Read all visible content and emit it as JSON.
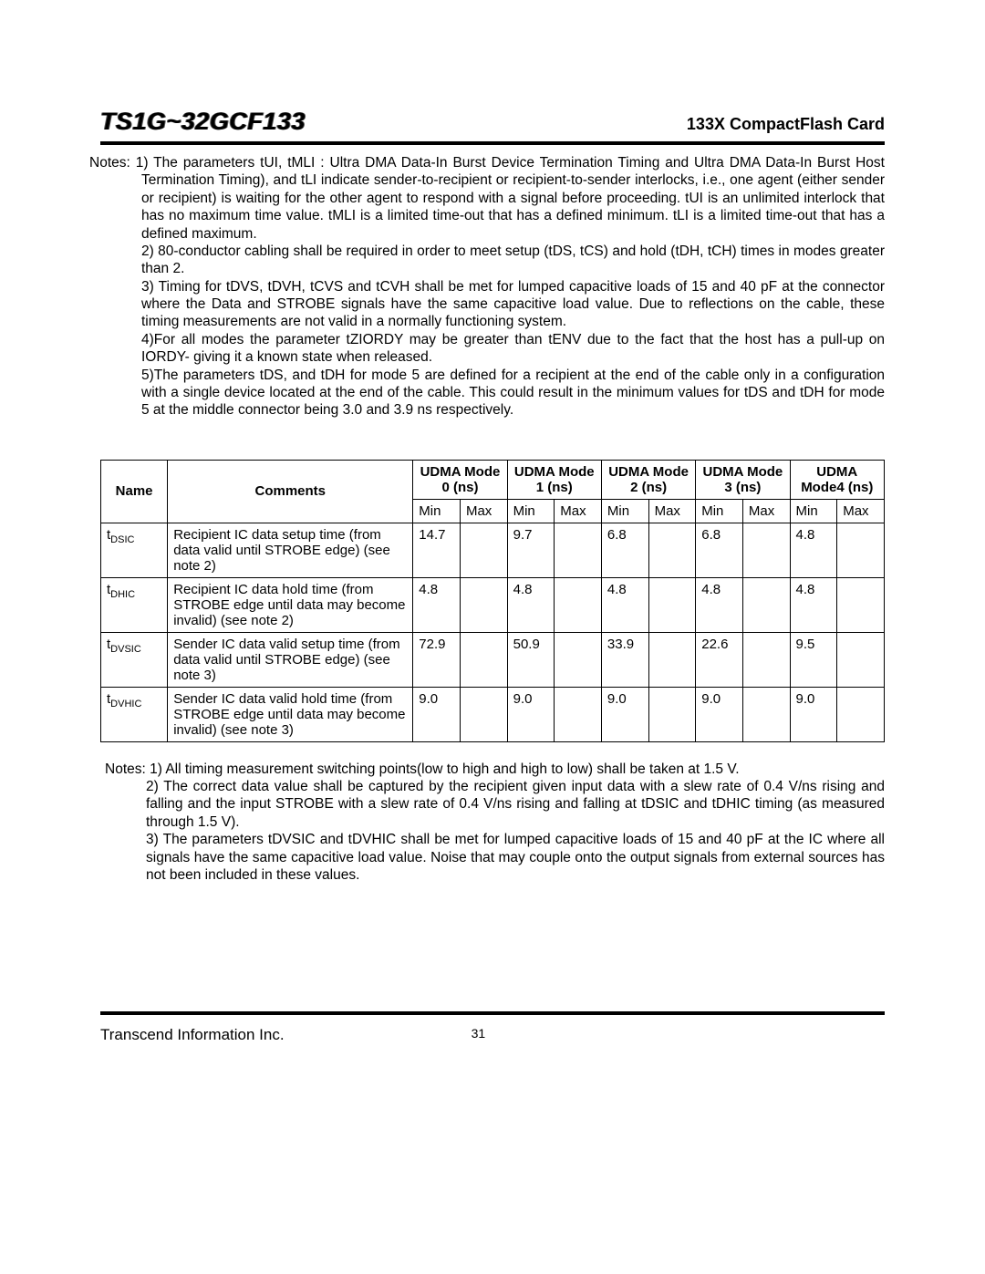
{
  "header": {
    "product": "TS1G~32GCF133",
    "subtitle": "133X CompactFlash Card"
  },
  "notes1": {
    "prefix": "Notes: 1) ",
    "l1": "The parameters tUI, tMLI : Ultra DMA Data-In Burst Device Termination Timing and Ultra DMA Data-In Burst Host Termination Timing), and tLI indicate sender-to-recipient or recipient-to-sender interlocks, i.e., one agent (either sender or recipient) is waiting for the other agent to respond with a signal before proceeding. tUI is an unlimited interlock that has no maximum time value. tMLI is a limited time-out that has a defined minimum. tLI is a limited time-out that has a defined maximum.",
    "l2": "2) 80-conductor cabling shall be required in order to meet setup (tDS, tCS) and hold (tDH, tCH) times in modes greater than 2.",
    "l3": "3) Timing for tDVS, tDVH, tCVS and tCVH shall be met for lumped capacitive loads of 15 and 40 pF at the connector where the Data and STROBE signals have the same capacitive load value. Due to reflections on the cable, these timing measurements are not valid in a normally functioning system.",
    "l4": "4)For all modes the parameter tZIORDY may be greater than tENV due to the fact that the host has a pull-up on IORDY- giving it a known state when released.",
    "l5": "5)The parameters tDS, and tDH for mode 5 are defined for a recipient at the end of the cable only in a configuration with a single device located at the end of the cable. This could result in the minimum values for tDS and tDH for mode 5 at the middle connector being 3.0 and 3.9 ns respectively."
  },
  "table": {
    "headers": {
      "name": "Name",
      "comments": "Comments",
      "modes": [
        "UDMA Mode 0 (ns)",
        "UDMA Mode 1 (ns)",
        "UDMA Mode 2 (ns)",
        "UDMA Mode 3 (ns)",
        "UDMA Mode4 (ns)"
      ],
      "min": "Min",
      "max": "Max"
    },
    "rows": [
      {
        "name_pre": "t",
        "name_sub": "DSIC",
        "comments": "Recipient IC data setup time (from data valid until STROBE edge) (see note 2)",
        "m0min": "14.7",
        "m0max": "",
        "m1min": "9.7",
        "m1max": "",
        "m2min": "6.8",
        "m2max": "",
        "m3min": "6.8",
        "m3max": "",
        "m4min": "4.8",
        "m4max": ""
      },
      {
        "name_pre": "t",
        "name_sub": "DHIC",
        "comments": "Recipient IC data hold time (from STROBE edge until data may become invalid) (see note 2)",
        "m0min": "4.8",
        "m0max": "",
        "m1min": "4.8",
        "m1max": "",
        "m2min": "4.8",
        "m2max": "",
        "m3min": "4.8",
        "m3max": "",
        "m4min": "4.8",
        "m4max": ""
      },
      {
        "name_pre": "t",
        "name_sub": "DVSIC",
        "comments": "Sender IC data valid setup time (from data valid until STROBE edge) (see note 3)",
        "m0min": "72.9",
        "m0max": "",
        "m1min": "50.9",
        "m1max": "",
        "m2min": "33.9",
        "m2max": "",
        "m3min": "22.6",
        "m3max": "",
        "m4min": "9.5",
        "m4max": ""
      },
      {
        "name_pre": "t",
        "name_sub": "DVHIC",
        "comments": "Sender IC data valid hold time (from STROBE edge until data may become invalid) (see note 3)",
        "m0min": "9.0",
        "m0max": "",
        "m1min": "9.0",
        "m1max": "",
        "m2min": "9.0",
        "m2max": "",
        "m3min": "9.0",
        "m3max": "",
        "m4min": "9.0",
        "m4max": ""
      }
    ]
  },
  "notes2": {
    "l1": "Notes: 1) All timing measurement switching points(low to high and high to low) shall be taken at 1.5 V.",
    "l2": "2) The correct data value shall be captured by the recipient given input data with a slew rate of 0.4 V/ns rising and falling and the input STROBE with a slew rate of 0.4 V/ns rising and falling at tDSIC and tDHIC timing (as measured through 1.5 V).",
    "l3": "3) The parameters tDVSIC and tDVHIC shall be met for lumped capacitive loads of 15 and 40 pF at the IC where all signals have the same capacitive load value. Noise that may couple onto the output signals from external sources has not been included in these values."
  },
  "footer": {
    "company": "Transcend Information Inc.",
    "page": "31"
  }
}
